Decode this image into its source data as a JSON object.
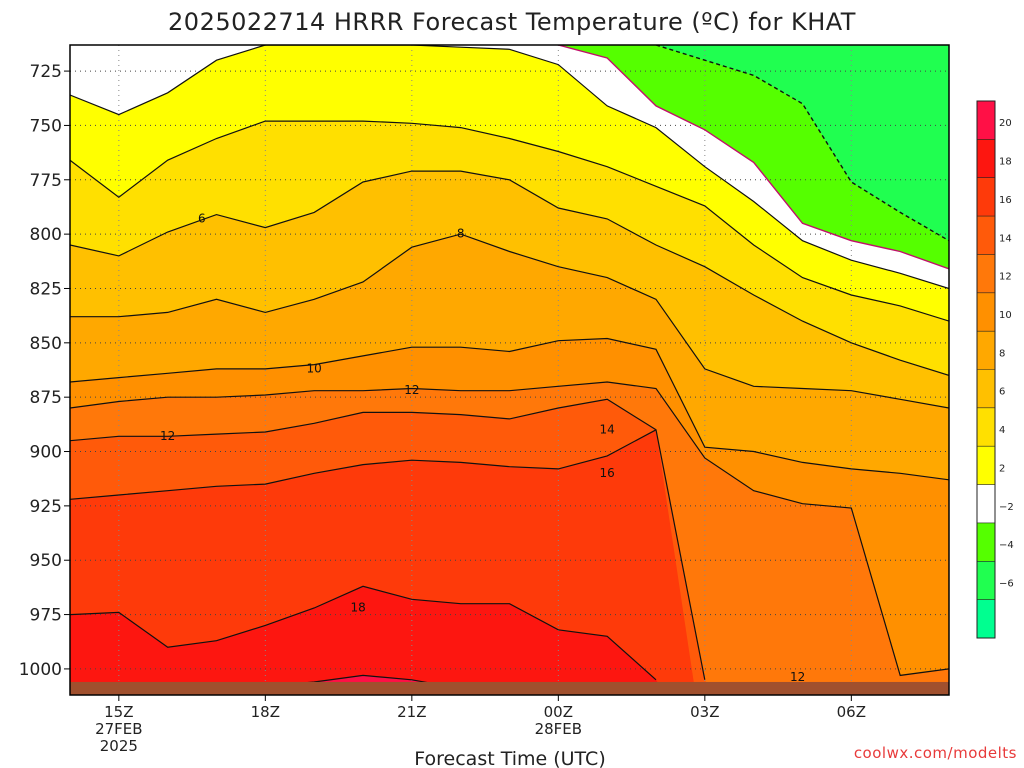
{
  "chart_data": {
    "type": "heatmap",
    "title": "2025022714 HRRR Forecast Temperature (ºC) for KHAT",
    "xlabel": "Forecast Time (UTC)",
    "ylabel": "",
    "credit": "coolwx.com/modelts",
    "y_axis": {
      "scale": "pressure",
      "ticks": [
        725,
        750,
        775,
        800,
        825,
        850,
        875,
        900,
        925,
        950,
        975,
        1000
      ],
      "range": [
        1012,
        713
      ]
    },
    "x_axis": {
      "range": [
        14,
        32
      ],
      "ticks": [
        {
          "hour": 15,
          "label": "15Z",
          "sub1": "27FEB",
          "sub2": "2025"
        },
        {
          "hour": 18,
          "label": "18Z",
          "sub1": "",
          "sub2": ""
        },
        {
          "hour": 21,
          "label": "21Z",
          "sub1": "",
          "sub2": ""
        },
        {
          "hour": 24,
          "label": "00Z",
          "sub1": "28FEB",
          "sub2": ""
        },
        {
          "hour": 27,
          "label": "03Z",
          "sub1": "",
          "sub2": ""
        },
        {
          "hour": 30,
          "label": "06Z",
          "sub1": "",
          "sub2": ""
        }
      ]
    },
    "hours": [
      14,
      15,
      16,
      17,
      18,
      19,
      20,
      21,
      22,
      23,
      24,
      25,
      26,
      27,
      28,
      29,
      30,
      31,
      32
    ],
    "isotherms": [
      {
        "t": 20,
        "p": [
          null,
          null,
          null,
          1012,
          1008,
          1006,
          1003,
          1005,
          1009,
          1012,
          null,
          null,
          null,
          null,
          null,
          null,
          null,
          null,
          null
        ]
      },
      {
        "t": 18,
        "p": [
          975,
          974,
          990,
          987,
          980,
          972,
          962,
          968,
          970,
          970,
          982,
          985,
          1005,
          null,
          null,
          null,
          null,
          null,
          null
        ]
      },
      {
        "t": 16,
        "p": [
          922,
          920,
          918,
          916,
          915,
          910,
          906,
          904,
          905,
          907,
          908,
          902,
          890,
          null,
          null,
          null,
          null,
          null,
          null
        ]
      },
      {
        "t": 14,
        "p": [
          895,
          893,
          893,
          892,
          891,
          887,
          882,
          882,
          883,
          885,
          880,
          876,
          890,
          1005,
          null,
          null,
          null,
          null,
          null
        ]
      },
      {
        "t": 12,
        "p": [
          880,
          877,
          875,
          875,
          874,
          872,
          872,
          871,
          872,
          872,
          870,
          868,
          871,
          903,
          918,
          924,
          926,
          1003,
          1000
        ]
      },
      {
        "t": 10,
        "p": [
          868,
          866,
          864,
          862,
          862,
          860,
          856,
          852,
          852,
          854,
          849,
          848,
          853,
          898,
          900,
          905,
          908,
          910,
          913
        ]
      },
      {
        "t": 8,
        "p": [
          838,
          838,
          836,
          830,
          836,
          830,
          822,
          806,
          800,
          808,
          815,
          820,
          830,
          862,
          870,
          871,
          872,
          876,
          880
        ]
      },
      {
        "t": 6,
        "p": [
          805,
          810,
          799,
          791,
          797,
          790,
          776,
          771,
          771,
          775,
          788,
          793,
          805,
          815,
          828,
          840,
          850,
          858,
          865
        ]
      },
      {
        "t": 4,
        "p": [
          766,
          783,
          766,
          756,
          748,
          748,
          748,
          749,
          751,
          756,
          762,
          769,
          778,
          787,
          805,
          820,
          828,
          833,
          840
        ]
      },
      {
        "t": 2,
        "p": [
          736,
          745,
          735,
          720,
          713,
          713,
          713,
          713,
          714,
          715,
          722,
          741,
          751,
          769,
          785,
          803,
          812,
          818,
          825
        ]
      }
    ],
    "isolines_neg": [
      {
        "t": -2,
        "p": [
          null,
          null,
          null,
          null,
          null,
          null,
          null,
          null,
          null,
          null,
          713,
          719,
          741,
          752,
          767,
          795,
          803,
          808,
          816
        ]
      },
      {
        "t": -4,
        "p": [
          null,
          null,
          null,
          null,
          null,
          null,
          null,
          null,
          null,
          null,
          null,
          null,
          713,
          720,
          727,
          740,
          776,
          790,
          803
        ]
      }
    ],
    "contour_labels": [
      {
        "text": "6",
        "hour": 16.7,
        "p": 793
      },
      {
        "text": "8",
        "hour": 22.0,
        "p": 800
      },
      {
        "text": "10",
        "hour": 19.0,
        "p": 862
      },
      {
        "text": "12",
        "hour": 21.0,
        "p": 872
      },
      {
        "text": "12",
        "hour": 16.0,
        "p": 893
      },
      {
        "text": "12",
        "hour": 28.9,
        "p": 1004
      },
      {
        "text": "14",
        "hour": 25.0,
        "p": 890
      },
      {
        "text": "16",
        "hour": 25.0,
        "p": 910
      },
      {
        "text": "18",
        "hour": 19.9,
        "p": 972
      }
    ],
    "surface_pressure": 1006,
    "colorbar": {
      "stops": [
        {
          "v": 20,
          "color": "#ff1046"
        },
        {
          "v": 18,
          "color": "#fd1610"
        },
        {
          "v": 16,
          "color": "#fe3a0a"
        },
        {
          "v": 14,
          "color": "#ff5a0a"
        },
        {
          "v": 12,
          "color": "#ff780a"
        },
        {
          "v": 10,
          "color": "#ff9000"
        },
        {
          "v": 8,
          "color": "#ffa800"
        },
        {
          "v": 6,
          "color": "#ffc000"
        },
        {
          "v": 4,
          "color": "#ffe000"
        },
        {
          "v": 2,
          "color": "#ffff00"
        },
        {
          "v": -2,
          "color": "#ffffff"
        },
        {
          "v": -4,
          "color": "#55ff00"
        },
        {
          "v": -6,
          "color": "#20ff50"
        },
        {
          "v": -8,
          "color": "#00ff90"
        }
      ],
      "labels": [
        "20",
        "18",
        "16",
        "14",
        "12",
        "10",
        "8",
        "6",
        "4",
        "2",
        "−2",
        "−4",
        "−6"
      ]
    },
    "grid": true,
    "legend": "right"
  }
}
